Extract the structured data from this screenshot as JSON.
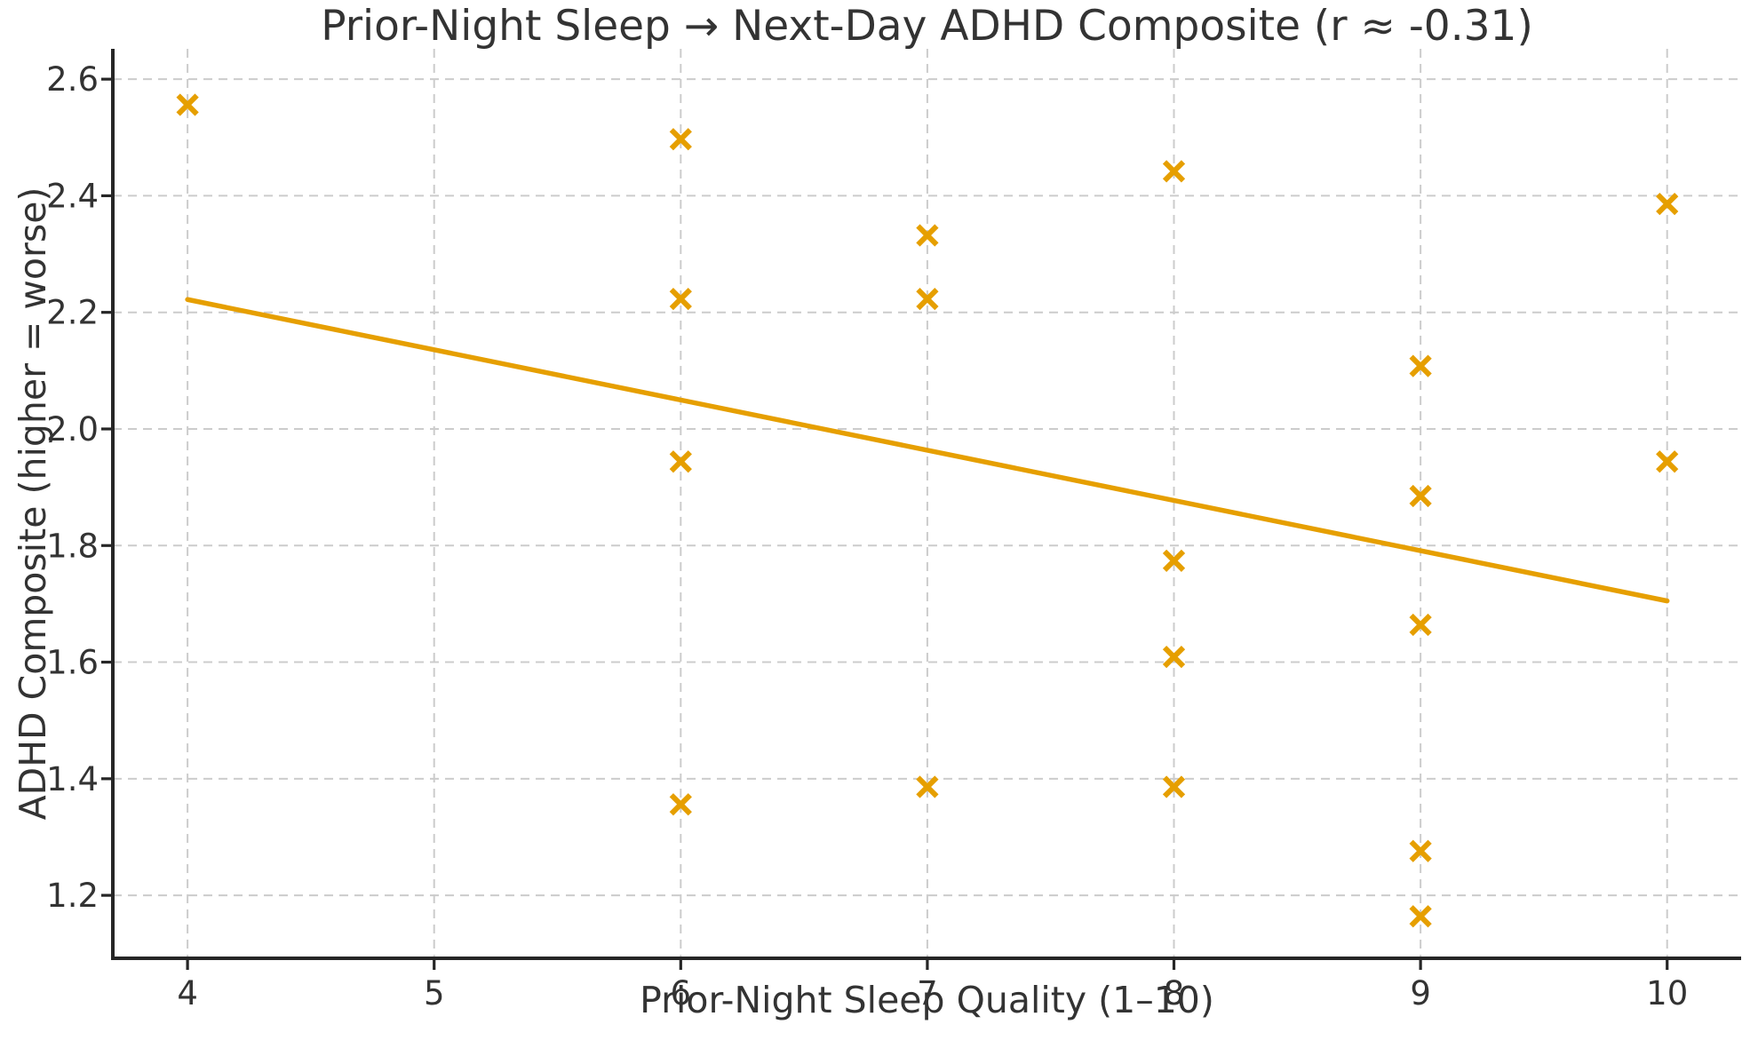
{
  "chart_data": {
    "type": "scatter",
    "title": "Prior-Night Sleep → Next-Day ADHD Composite (r ≈ -0.31)",
    "xlabel": "Prior-Night Sleep Quality (1–10)",
    "ylabel": "ADHD Composite (higher = worse)",
    "xlim": [
      3.697,
      10.3
    ],
    "ylim": [
      1.092,
      2.652
    ],
    "xticks": [
      4,
      5,
      6,
      7,
      8,
      9,
      10
    ],
    "yticks": [
      1.2,
      1.4,
      1.6,
      1.8,
      2.0,
      2.2,
      2.4,
      2.6
    ],
    "grid": true,
    "grid_style": "dashed",
    "legend_position": "none",
    "marker": "x",
    "correlation_r": -0.31,
    "points": [
      [
        4,
        2.556
      ],
      [
        6,
        2.497
      ],
      [
        6,
        2.223
      ],
      [
        6,
        1.944
      ],
      [
        6,
        1.356
      ],
      [
        7,
        2.332
      ],
      [
        7,
        2.223
      ],
      [
        7,
        1.386
      ],
      [
        8,
        2.442
      ],
      [
        8,
        1.774
      ],
      [
        8,
        1.609
      ],
      [
        8,
        1.386
      ],
      [
        9,
        2.108
      ],
      [
        9,
        1.885
      ],
      [
        9,
        1.664
      ],
      [
        9,
        1.276
      ],
      [
        9,
        1.164
      ],
      [
        10,
        2.386
      ],
      [
        10,
        1.944
      ]
    ],
    "trendline": {
      "x": [
        4,
        10
      ],
      "y": [
        2.222,
        1.705
      ]
    },
    "colors": {
      "accent_orange": "#E69F00",
      "grid": "#cccccc",
      "text": "#333333",
      "spine": "#262626",
      "background": "#ffffff"
    }
  }
}
